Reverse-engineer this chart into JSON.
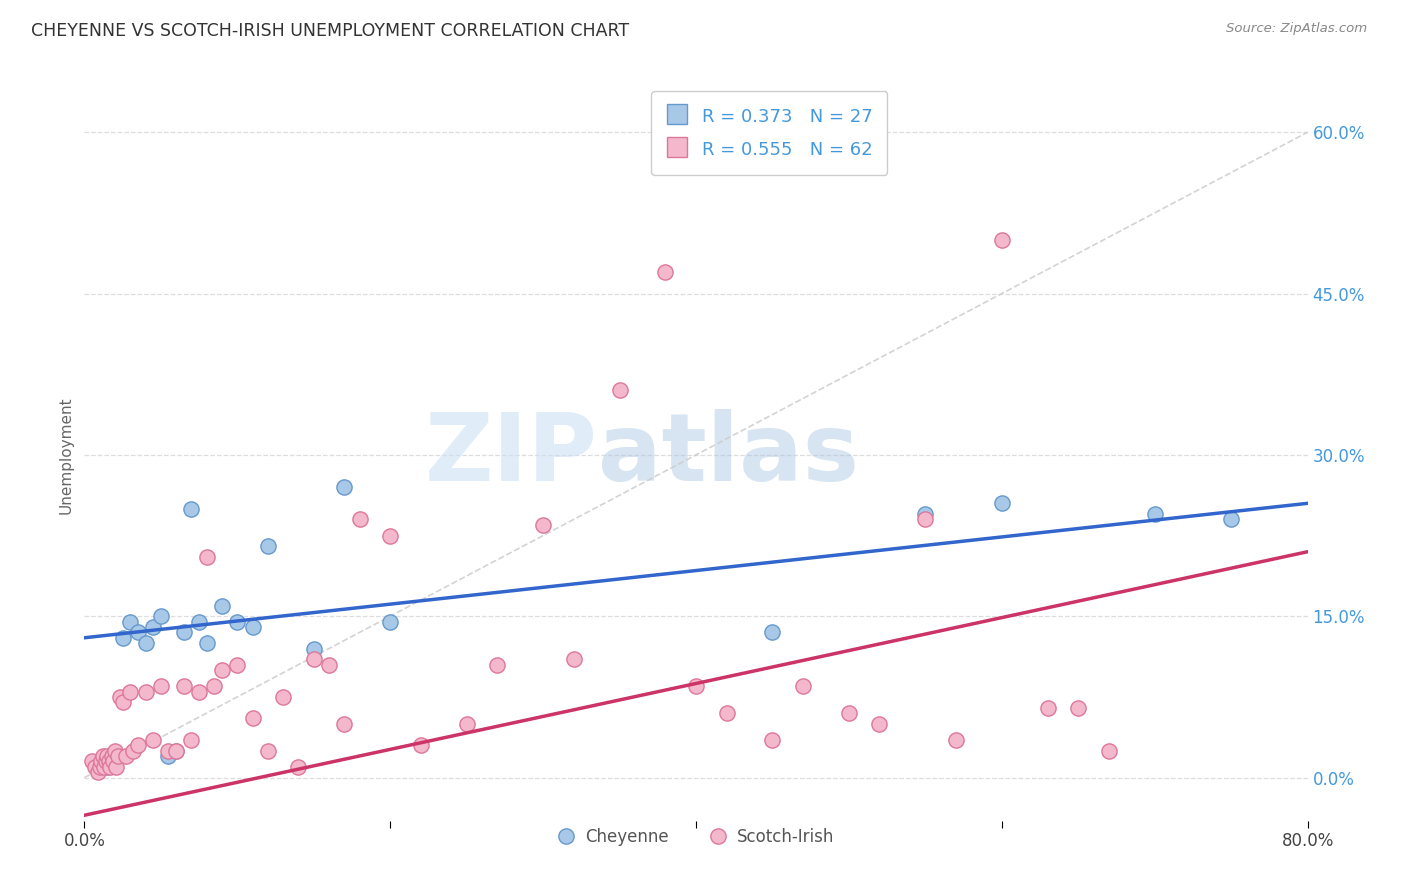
{
  "title": "CHEYENNE VS SCOTCH-IRISH UNEMPLOYMENT CORRELATION CHART",
  "source": "Source: ZipAtlas.com",
  "ylabel": "Unemployment",
  "right_yticks": [
    "0.0%",
    "15.0%",
    "30.0%",
    "45.0%",
    "60.0%"
  ],
  "right_ytick_vals": [
    0.0,
    15.0,
    30.0,
    45.0,
    60.0
  ],
  "xlim": [
    0.0,
    80.0
  ],
  "ylim": [
    -4.0,
    64.0
  ],
  "cheyenne_color": "#a8c8e8",
  "scotch_color": "#f4b8cc",
  "cheyenne_edge": "#6699cc",
  "scotch_edge": "#dd7799",
  "line_cheyenne": "#3366cc",
  "line_scotch": "#cc3366",
  "ref_line_color": "#cccccc",
  "legend_color": "#4499dd",
  "cheyenne_x": [
    1.0,
    1.5,
    2.0,
    2.5,
    3.0,
    3.5,
    4.0,
    4.5,
    5.0,
    5.5,
    6.0,
    6.5,
    7.0,
    7.5,
    8.0,
    9.0,
    10.0,
    11.0,
    12.0,
    15.0,
    17.0,
    20.0,
    45.0,
    55.0,
    60.0,
    70.0,
    75.0
  ],
  "cheyenne_y": [
    1.5,
    1.0,
    2.0,
    13.0,
    14.5,
    13.5,
    12.5,
    14.0,
    15.0,
    2.0,
    2.5,
    13.5,
    25.0,
    14.5,
    12.5,
    16.0,
    14.5,
    14.0,
    21.5,
    12.0,
    27.0,
    14.5,
    13.5,
    24.5,
    25.5,
    24.5,
    24.0
  ],
  "scotch_x": [
    0.5,
    0.7,
    0.9,
    1.0,
    1.1,
    1.2,
    1.3,
    1.4,
    1.5,
    1.6,
    1.7,
    1.8,
    1.9,
    2.0,
    2.1,
    2.2,
    2.3,
    2.5,
    2.7,
    3.0,
    3.2,
    3.5,
    4.0,
    4.5,
    5.0,
    5.5,
    6.0,
    6.5,
    7.0,
    7.5,
    8.0,
    8.5,
    9.0,
    10.0,
    11.0,
    12.0,
    13.0,
    14.0,
    15.0,
    16.0,
    17.0,
    18.0,
    20.0,
    22.0,
    25.0,
    27.0,
    30.0,
    32.0,
    35.0,
    38.0,
    40.0,
    42.0,
    45.0,
    47.0,
    50.0,
    52.0,
    55.0,
    57.0,
    60.0,
    63.0,
    65.0,
    67.0
  ],
  "scotch_y": [
    1.5,
    1.0,
    0.5,
    1.0,
    1.5,
    2.0,
    1.0,
    1.5,
    2.0,
    1.5,
    1.0,
    2.0,
    1.5,
    2.5,
    1.0,
    2.0,
    7.5,
    7.0,
    2.0,
    8.0,
    2.5,
    3.0,
    8.0,
    3.5,
    8.5,
    2.5,
    2.5,
    8.5,
    3.5,
    8.0,
    20.5,
    8.5,
    10.0,
    10.5,
    5.5,
    2.5,
    7.5,
    1.0,
    11.0,
    10.5,
    5.0,
    24.0,
    22.5,
    3.0,
    5.0,
    10.5,
    23.5,
    11.0,
    36.0,
    47.0,
    8.5,
    6.0,
    3.5,
    8.5,
    6.0,
    5.0,
    24.0,
    3.5,
    50.0,
    6.5,
    6.5,
    2.5
  ],
  "watermark_zip": "ZIP",
  "watermark_atlas": "atlas",
  "background": "#ffffff",
  "grid_color": "#dddddd",
  "cheyenne_line_x0": 0.0,
  "cheyenne_line_y0": 13.0,
  "cheyenne_line_x1": 80.0,
  "cheyenne_line_y1": 25.5,
  "scotch_line_x0": 0.0,
  "scotch_line_y0": -3.5,
  "scotch_line_x1": 80.0,
  "scotch_line_y1": 21.0
}
